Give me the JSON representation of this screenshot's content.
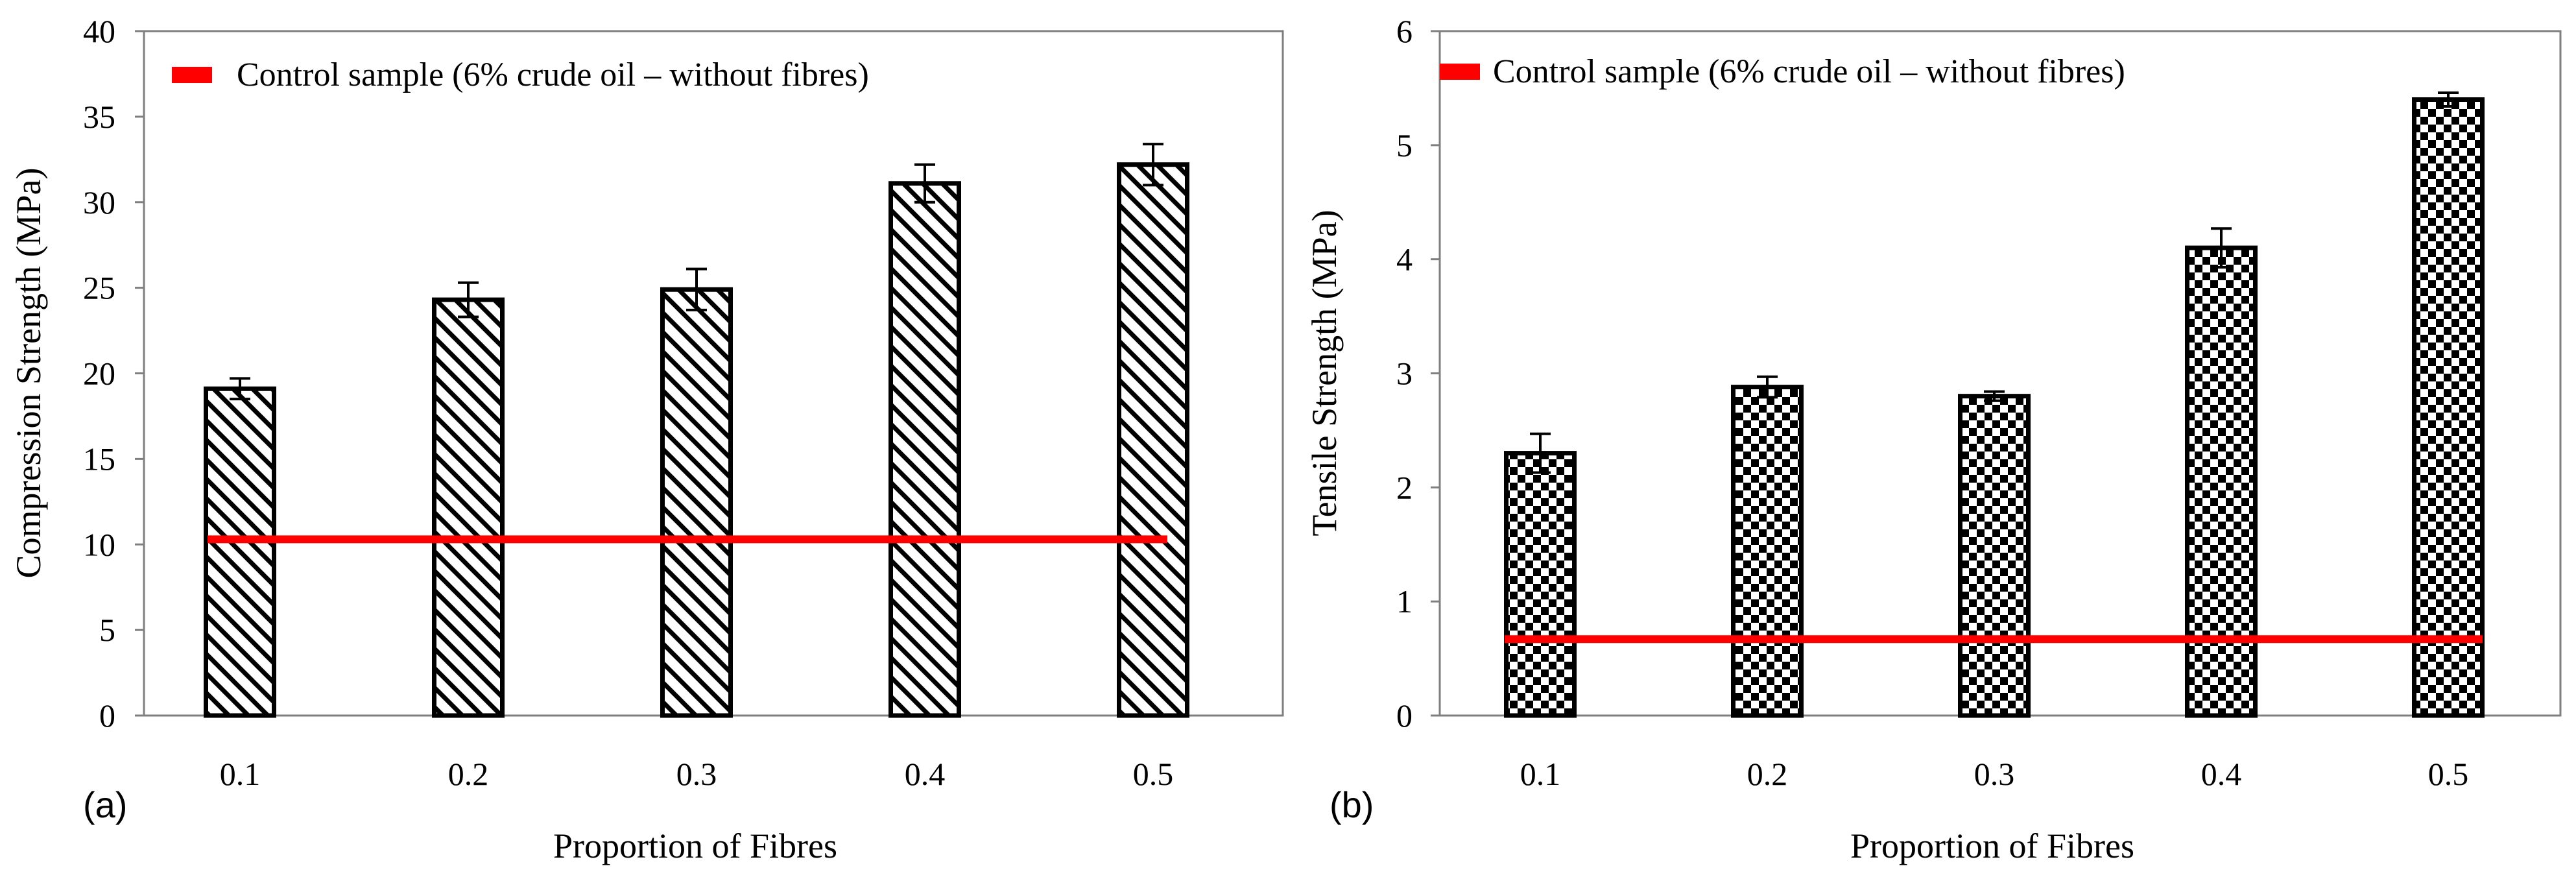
{
  "figure": "two-panel bar chart",
  "colors": {
    "control_line": "#ff0000",
    "bar_outline": "#000000",
    "frame": "#7f7f7f"
  },
  "chart_data": [
    {
      "type": "bar",
      "panel_label": "(a)",
      "categories": [
        "0.1",
        "0.2",
        "0.3",
        "0.4",
        "0.5"
      ],
      "values": [
        19.1,
        24.3,
        24.9,
        31.1,
        32.2
      ],
      "errors": [
        0.6,
        1.0,
        1.2,
        1.1,
        1.2
      ],
      "pattern": "diagonal-hatch",
      "xlabel": "Proportion of Fibres",
      "ylabel": "Compression Strength (MPa)",
      "ylim": [
        0,
        40
      ],
      "yticks": [
        "0",
        "5",
        "10",
        "15",
        "20",
        "25",
        "30",
        "35",
        "40"
      ],
      "control_value": 10.3,
      "legend_label": "Control sample (6% crude oil – without fibres)",
      "legend_position": "top-left"
    },
    {
      "type": "bar",
      "panel_label": "(b)",
      "categories": [
        "0.1",
        "0.2",
        "0.3",
        "0.4",
        "0.5"
      ],
      "values": [
        2.3,
        2.88,
        2.8,
        4.1,
        5.4
      ],
      "errors": [
        0.17,
        0.09,
        0.04,
        0.17,
        0.06
      ],
      "pattern": "checkerboard",
      "xlabel": "Proportion of Fibres",
      "ylabel": "Tensile Strength (MPa)",
      "ylim": [
        0,
        6
      ],
      "yticks": [
        "0",
        "1",
        "2",
        "3",
        "4",
        "5",
        "6"
      ],
      "control_value": 0.67,
      "legend_label": "Control sample (6% crude oil – without fibres)",
      "legend_position": "top-left"
    }
  ]
}
